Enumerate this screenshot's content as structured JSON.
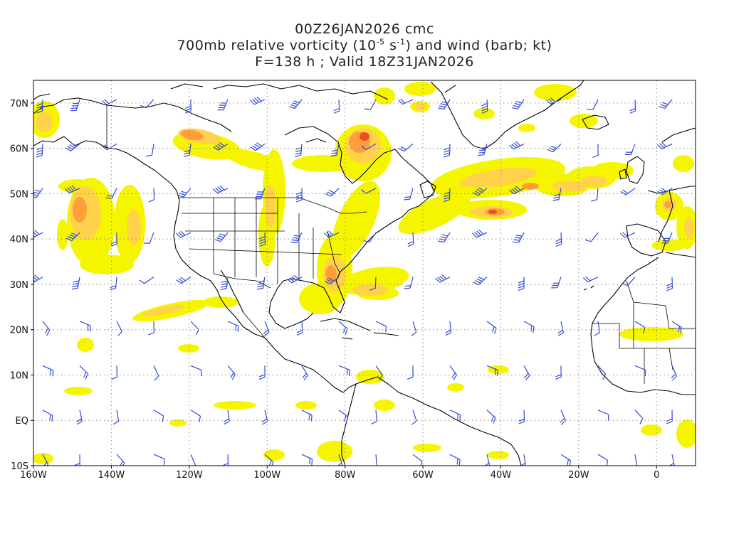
{
  "header": {
    "line1": "00Z26JAN2026 cmc",
    "line2_prefix": "700mb relative vorticity (10",
    "line2_exp1": "-5",
    "line2_mid": " s",
    "line2_exp2": "-1",
    "line2_suffix": ") and wind (barb; kt)",
    "line3": "F=138 h ; Valid 18Z31JAN2026"
  },
  "axes": {
    "lat_labels": [
      "70N",
      "60N",
      "50N",
      "40N",
      "30N",
      "20N",
      "10N",
      "EQ",
      "10S"
    ],
    "lon_labels": [
      "160W",
      "140W",
      "120W",
      "100W",
      "80W",
      "60W",
      "40W",
      "20W",
      "0"
    ],
    "lat_values": [
      70,
      60,
      50,
      40,
      30,
      20,
      10,
      0,
      -10
    ],
    "lon_values": [
      -160,
      -140,
      -120,
      -100,
      -80,
      -60,
      -40,
      -20,
      0
    ],
    "lon_range": [
      -160,
      10
    ],
    "lat_range": [
      -10,
      75
    ],
    "grid": "dotted"
  },
  "colors": {
    "shade_low": "#f5f500",
    "shade_mid": "#ffd24a",
    "shade_high": "#ff9e3a",
    "shade_max": "#ef4a2a",
    "barb": "#2f49d8",
    "coast": "#000000",
    "grid": "#8a8a8a"
  }
}
